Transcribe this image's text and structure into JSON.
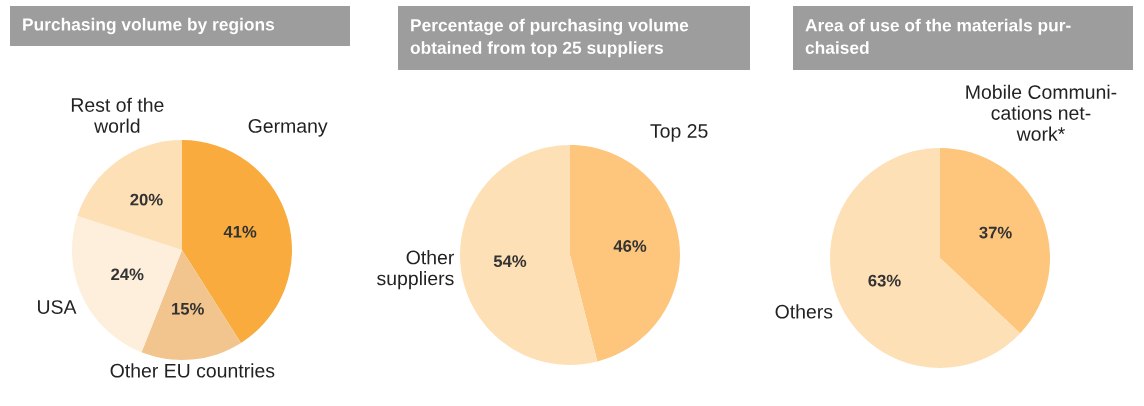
{
  "chart_data": [
    {
      "type": "pie",
      "title": "Purchasing volume by regions",
      "categories": [
        "Germany",
        "Other EU countries",
        "USA",
        "Rest of the\nworld"
      ],
      "values": [
        41,
        15,
        24,
        20
      ],
      "value_labels": [
        "41%",
        "15%",
        "24%",
        "20%"
      ],
      "colors": [
        "#f9ac3d",
        "#f2c58e",
        "#fdefdc",
        "#fde0b6"
      ]
    },
    {
      "type": "pie",
      "title": "Percentage of purchasing volume\nobtained from top 25 suppliers",
      "categories": [
        "Top 25",
        "Other\nsuppliers"
      ],
      "values": [
        46,
        54
      ],
      "value_labels": [
        "46%",
        "54%"
      ],
      "colors": [
        "#fdc67c",
        "#fde0b6"
      ]
    },
    {
      "type": "pie",
      "title": "Area of use of the materials pur-\nchaised",
      "categories": [
        "Mobile Communi-\ncations net-\nwork*",
        "Others"
      ],
      "values": [
        37,
        63
      ],
      "value_labels": [
        "37%",
        "63%"
      ],
      "colors": [
        "#fdc67c",
        "#fde0b6"
      ]
    }
  ]
}
